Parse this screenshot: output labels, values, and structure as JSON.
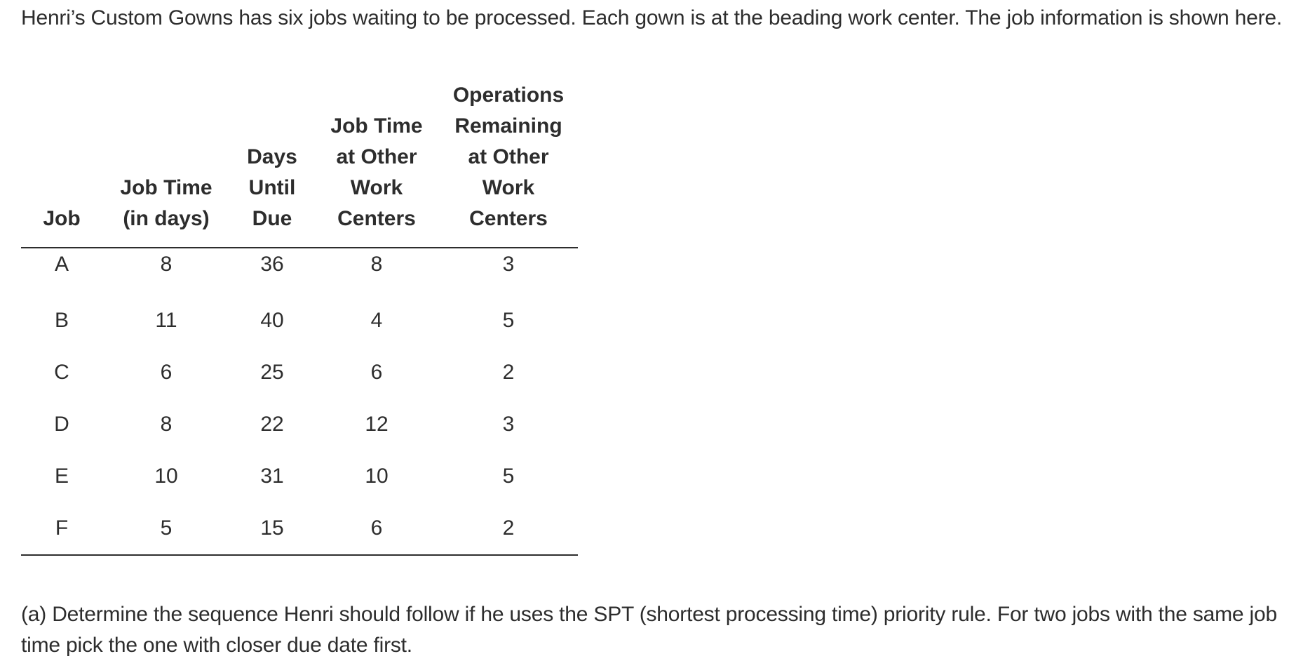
{
  "intro_text": "Henri’s Custom Gowns has six jobs waiting to be processed. Each gown is at the beading work center. The job information is shown here.",
  "table": {
    "headers": [
      "Job",
      "Job Time\n(in days)",
      "Days\nUntil\nDue",
      "Job Time\nat Other\nWork\nCenters",
      "Operations\nRemaining\nat Other\nWork\nCenters"
    ],
    "rows": [
      [
        "A",
        "8",
        "36",
        "8",
        "3"
      ],
      [
        "B",
        "11",
        "40",
        "4",
        "5"
      ],
      [
        "C",
        "6",
        "25",
        "6",
        "2"
      ],
      [
        "D",
        "8",
        "22",
        "12",
        "3"
      ],
      [
        "E",
        "10",
        "31",
        "10",
        "5"
      ],
      [
        "F",
        "5",
        "15",
        "6",
        "2"
      ]
    ]
  },
  "question_text": "(a) Determine the sequence Henri should follow if he uses the SPT (shortest processing time) priority rule. For two jobs with the same job time pick the one with closer due date first."
}
